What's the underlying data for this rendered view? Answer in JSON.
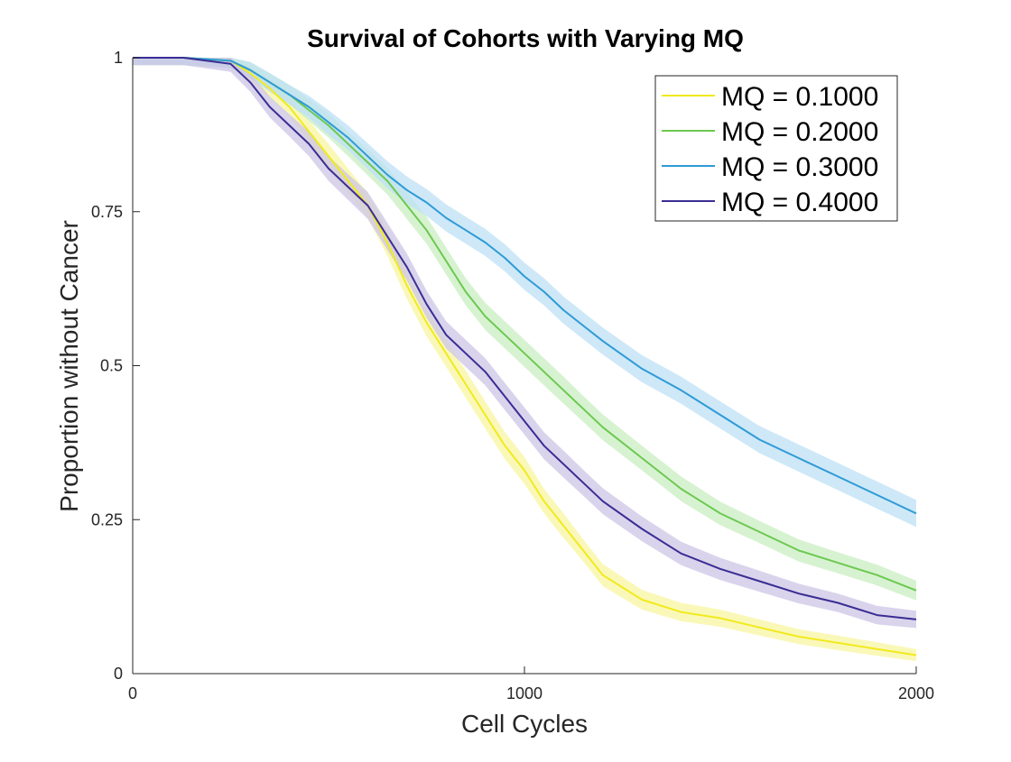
{
  "chart_data": {
    "type": "line",
    "title": "Survival of Cohorts with Varying MQ",
    "xlabel": "Cell Cycles",
    "ylabel": "Proportion without Cancer",
    "xlim": [
      0,
      2000
    ],
    "ylim": [
      0,
      1
    ],
    "xticks": [
      0,
      1000,
      2000
    ],
    "yticks": [
      0,
      0.25,
      0.5,
      0.75,
      1
    ],
    "xtick_labels": [
      "0",
      "1000",
      "2000"
    ],
    "ytick_labels": [
      "0",
      "0.25",
      "0.5",
      "0.75",
      "1"
    ],
    "grid": false,
    "legend_position": "top-right",
    "confidence_band": true,
    "series": [
      {
        "name": "MQ = 0.1000",
        "color": "#F1EA1E",
        "band_color": "#F8F5A0",
        "x": [
          0,
          130,
          250,
          300,
          350,
          400,
          450,
          500,
          550,
          600,
          650,
          700,
          750,
          800,
          850,
          900,
          950,
          1000,
          1050,
          1100,
          1150,
          1200,
          1300,
          1400,
          1500,
          1600,
          1700,
          1800,
          1900,
          2000
        ],
        "y": [
          1,
          1,
          0.995,
          0.975,
          0.95,
          0.92,
          0.88,
          0.84,
          0.8,
          0.76,
          0.7,
          0.63,
          0.57,
          0.52,
          0.47,
          0.42,
          0.37,
          0.33,
          0.28,
          0.24,
          0.2,
          0.16,
          0.12,
          0.1,
          0.09,
          0.075,
          0.06,
          0.05,
          0.04,
          0.03
        ],
        "band": [
          0.012,
          0.012,
          0.012,
          0.012,
          0.015,
          0.015,
          0.018,
          0.02,
          0.02,
          0.02,
          0.022,
          0.022,
          0.022,
          0.022,
          0.022,
          0.022,
          0.022,
          0.022,
          0.02,
          0.02,
          0.018,
          0.018,
          0.016,
          0.015,
          0.014,
          0.013,
          0.012,
          0.012,
          0.011,
          0.01
        ]
      },
      {
        "name": "MQ = 0.2000",
        "color": "#6CC950",
        "band_color": "#C9EDC1",
        "x": [
          0,
          130,
          250,
          300,
          350,
          400,
          450,
          500,
          550,
          600,
          650,
          700,
          750,
          800,
          850,
          900,
          950,
          1000,
          1050,
          1100,
          1150,
          1200,
          1300,
          1400,
          1500,
          1600,
          1700,
          1800,
          1900,
          2000
        ],
        "y": [
          1,
          1,
          0.995,
          0.98,
          0.96,
          0.94,
          0.915,
          0.89,
          0.86,
          0.83,
          0.8,
          0.76,
          0.72,
          0.67,
          0.62,
          0.58,
          0.55,
          0.52,
          0.49,
          0.46,
          0.43,
          0.4,
          0.35,
          0.3,
          0.26,
          0.23,
          0.2,
          0.18,
          0.16,
          0.135
        ],
        "band": [
          0.012,
          0.012,
          0.012,
          0.013,
          0.015,
          0.016,
          0.018,
          0.02,
          0.02,
          0.021,
          0.022,
          0.022,
          0.022,
          0.022,
          0.022,
          0.022,
          0.022,
          0.022,
          0.022,
          0.022,
          0.021,
          0.021,
          0.02,
          0.02,
          0.019,
          0.018,
          0.018,
          0.017,
          0.017,
          0.016
        ]
      },
      {
        "name": "MQ = 0.3000",
        "color": "#2E9BD6",
        "band_color": "#BDE0F5",
        "x": [
          0,
          130,
          250,
          300,
          350,
          400,
          450,
          500,
          550,
          600,
          650,
          700,
          750,
          800,
          850,
          900,
          950,
          1000,
          1050,
          1100,
          1150,
          1200,
          1300,
          1400,
          1500,
          1600,
          1700,
          1800,
          1900,
          2000
        ],
        "y": [
          1,
          1,
          0.995,
          0.98,
          0.96,
          0.94,
          0.92,
          0.895,
          0.87,
          0.84,
          0.81,
          0.785,
          0.765,
          0.74,
          0.72,
          0.7,
          0.675,
          0.645,
          0.62,
          0.59,
          0.565,
          0.54,
          0.495,
          0.46,
          0.42,
          0.38,
          0.35,
          0.32,
          0.29,
          0.26
        ],
        "band": [
          0.012,
          0.012,
          0.012,
          0.013,
          0.015,
          0.016,
          0.018,
          0.02,
          0.02,
          0.021,
          0.022,
          0.022,
          0.022,
          0.022,
          0.022,
          0.022,
          0.022,
          0.022,
          0.022,
          0.022,
          0.022,
          0.022,
          0.022,
          0.022,
          0.022,
          0.022,
          0.022,
          0.022,
          0.022,
          0.022
        ]
      },
      {
        "name": "MQ = 0.4000",
        "color": "#3A2D94",
        "band_color": "#CCC5E6",
        "x": [
          0,
          130,
          250,
          300,
          350,
          400,
          450,
          500,
          550,
          600,
          650,
          700,
          750,
          800,
          850,
          900,
          950,
          1000,
          1050,
          1100,
          1150,
          1200,
          1300,
          1400,
          1500,
          1600,
          1700,
          1800,
          1900,
          2000
        ],
        "y": [
          1,
          1,
          0.99,
          0.96,
          0.92,
          0.89,
          0.86,
          0.82,
          0.79,
          0.76,
          0.71,
          0.66,
          0.6,
          0.55,
          0.52,
          0.49,
          0.45,
          0.41,
          0.37,
          0.34,
          0.31,
          0.28,
          0.235,
          0.195,
          0.17,
          0.15,
          0.13,
          0.115,
          0.095,
          0.088
        ],
        "band": [
          0.012,
          0.012,
          0.013,
          0.015,
          0.017,
          0.018,
          0.02,
          0.02,
          0.021,
          0.022,
          0.022,
          0.022,
          0.022,
          0.022,
          0.022,
          0.022,
          0.022,
          0.022,
          0.022,
          0.022,
          0.021,
          0.021,
          0.02,
          0.019,
          0.018,
          0.017,
          0.016,
          0.015,
          0.015,
          0.014
        ]
      }
    ]
  }
}
